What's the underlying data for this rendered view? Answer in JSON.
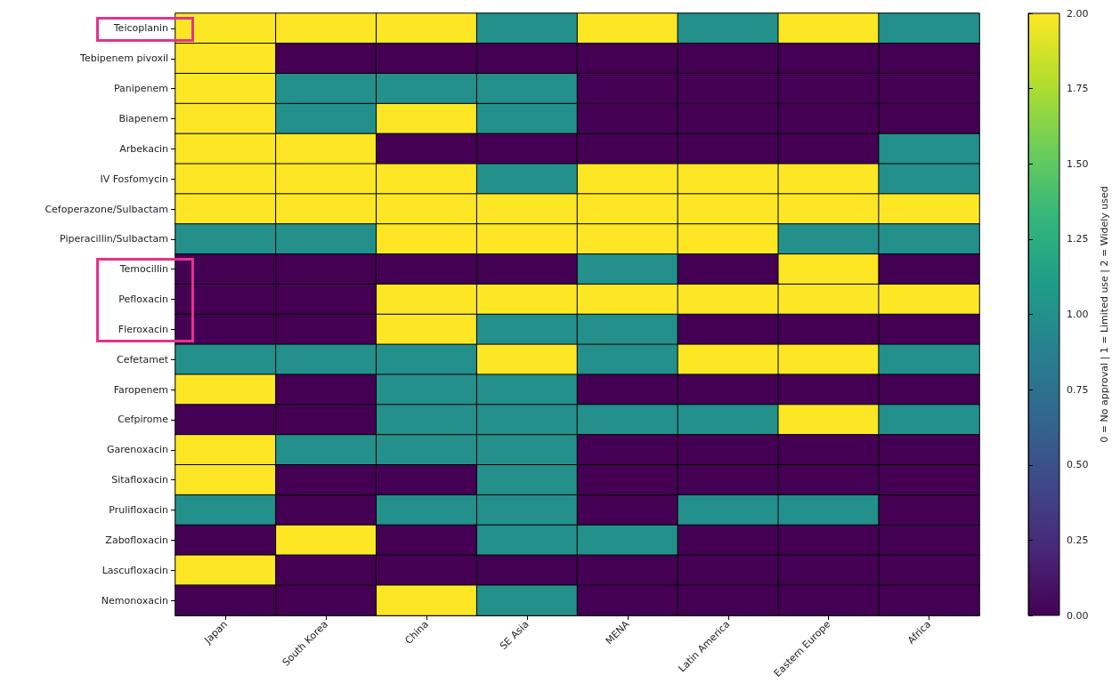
{
  "chart_data": {
    "type": "heatmap",
    "categories": [
      "Japan",
      "South Korea",
      "China",
      "SE Asia",
      "MENA",
      "Latin America",
      "Eastern Europe",
      "Africa"
    ],
    "y_categories": [
      "Teicoplanin",
      "Tebipenem pivoxil",
      "Panipenem",
      "Biapenem",
      "Arbekacin",
      "IV Fosfomycin",
      "Cefoperazone/Sulbactam",
      "Piperacillin/Sulbactam",
      "Temocillin",
      "Pefloxacin",
      "Fleroxacin",
      "Cefetamet",
      "Faropenem",
      "Cefpirome",
      "Garenoxacin",
      "Sitafloxacin",
      "Prulifloxacin",
      "Zabofloxacin",
      "Lascufloxacin",
      "Nemonoxacin"
    ],
    "cells": [
      [
        2,
        2,
        2,
        1,
        2,
        1,
        2,
        1
      ],
      [
        2,
        0,
        0,
        0,
        0,
        0,
        0,
        0
      ],
      [
        2,
        1,
        1,
        1,
        0,
        0,
        0,
        0
      ],
      [
        2,
        1,
        2,
        1,
        0,
        0,
        0,
        0
      ],
      [
        2,
        2,
        0,
        0,
        0,
        0,
        0,
        1
      ],
      [
        2,
        2,
        2,
        1,
        2,
        2,
        2,
        1
      ],
      [
        2,
        2,
        2,
        2,
        2,
        2,
        2,
        2
      ],
      [
        1,
        1,
        2,
        2,
        2,
        2,
        1,
        1
      ],
      [
        0,
        0,
        0,
        0,
        1,
        0,
        2,
        0
      ],
      [
        0,
        0,
        2,
        2,
        2,
        2,
        2,
        2
      ],
      [
        0,
        0,
        2,
        1,
        1,
        0,
        0,
        0
      ],
      [
        1,
        1,
        1,
        2,
        1,
        2,
        2,
        1
      ],
      [
        2,
        0,
        1,
        1,
        0,
        0,
        0,
        0
      ],
      [
        0,
        0,
        1,
        1,
        1,
        1,
        2,
        1
      ],
      [
        2,
        1,
        1,
        1,
        0,
        0,
        0,
        0
      ],
      [
        2,
        0,
        0,
        1,
        0,
        0,
        0,
        0
      ],
      [
        1,
        0,
        1,
        1,
        0,
        1,
        1,
        0
      ],
      [
        0,
        2,
        0,
        1,
        1,
        0,
        0,
        0
      ],
      [
        2,
        0,
        0,
        0,
        0,
        0,
        0,
        0
      ],
      [
        0,
        0,
        2,
        1,
        0,
        0,
        0,
        0
      ]
    ],
    "clabel": "0 = No approval | 1 = Limited use | 2 = Widely used",
    "clim": [
      0,
      2
    ],
    "cticks": [
      {
        "value": 0,
        "label": "0.00"
      },
      {
        "value": 0.25,
        "label": "0.25"
      },
      {
        "value": 0.5,
        "label": "0.50"
      },
      {
        "value": 0.75,
        "label": "0.75"
      },
      {
        "value": 1,
        "label": "1.00"
      },
      {
        "value": 1.25,
        "label": "1.25"
      },
      {
        "value": 1.5,
        "label": "1.50"
      },
      {
        "value": 1.75,
        "label": "1.75"
      },
      {
        "value": 2,
        "label": "2.00"
      }
    ]
  }
}
